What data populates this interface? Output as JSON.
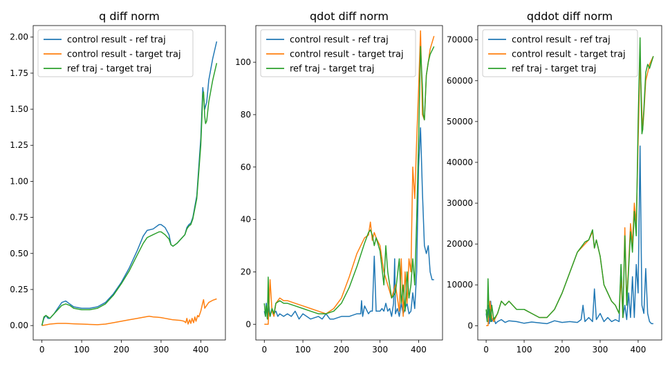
{
  "chart_data": [
    {
      "type": "line",
      "title": "q diff norm",
      "xlim": [
        -22,
        462
      ],
      "ylim": [
        -0.1,
        2.08
      ],
      "xticks": [
        0,
        100,
        200,
        300,
        400
      ],
      "xtick_labels": [
        "0",
        "100",
        "200",
        "300",
        "400"
      ],
      "yticks": [
        0,
        0.25,
        0.5,
        0.75,
        1.0,
        1.25,
        1.5,
        1.75,
        2.0
      ],
      "ytick_labels": [
        "0.00",
        "0.25",
        "0.50",
        "0.75",
        "1.00",
        "1.25",
        "1.50",
        "1.75",
        "2.00"
      ],
      "grid": false,
      "legend_position": "upper-left",
      "series": [
        {
          "name": "control result - ref traj",
          "color": "#1f77b4",
          "x": [
            0,
            5,
            10,
            15,
            20,
            30,
            40,
            50,
            60,
            70,
            80,
            100,
            120,
            140,
            160,
            180,
            200,
            220,
            240,
            255,
            265,
            280,
            295,
            300,
            310,
            320,
            325,
            330,
            340,
            350,
            360,
            365,
            370,
            375,
            380,
            390,
            400,
            405,
            407,
            410,
            415,
            420,
            430,
            440
          ],
          "y": [
            0.0,
            0.05,
            0.07,
            0.05,
            0.05,
            0.08,
            0.12,
            0.16,
            0.17,
            0.15,
            0.13,
            0.12,
            0.12,
            0.13,
            0.16,
            0.22,
            0.3,
            0.4,
            0.52,
            0.62,
            0.66,
            0.67,
            0.7,
            0.7,
            0.68,
            0.63,
            0.56,
            0.55,
            0.57,
            0.6,
            0.63,
            0.68,
            0.7,
            0.71,
            0.75,
            0.9,
            1.3,
            1.65,
            1.6,
            1.5,
            1.55,
            1.7,
            1.85,
            1.97
          ]
        },
        {
          "name": "control result - target traj",
          "color": "#ff7f0e",
          "x": [
            0,
            10,
            20,
            40,
            60,
            80,
            100,
            120,
            140,
            160,
            180,
            200,
            220,
            240,
            260,
            270,
            280,
            290,
            300,
            310,
            320,
            330,
            340,
            350,
            358,
            362,
            365,
            368,
            372,
            375,
            378,
            382,
            385,
            388,
            392,
            395,
            400,
            405,
            407,
            410,
            420,
            430,
            440
          ],
          "y": [
            0.0,
            0.005,
            0.01,
            0.015,
            0.015,
            0.012,
            0.01,
            0.008,
            0.006,
            0.01,
            0.02,
            0.03,
            0.04,
            0.05,
            0.06,
            0.065,
            0.06,
            0.058,
            0.055,
            0.05,
            0.045,
            0.04,
            0.038,
            0.035,
            0.03,
            0.02,
            0.05,
            0.01,
            0.04,
            0.015,
            0.05,
            0.02,
            0.06,
            0.03,
            0.07,
            0.06,
            0.1,
            0.16,
            0.18,
            0.12,
            0.16,
            0.175,
            0.185
          ]
        },
        {
          "name": "ref traj - target traj",
          "color": "#2ca02c",
          "x": [
            0,
            5,
            10,
            15,
            20,
            30,
            40,
            50,
            60,
            70,
            80,
            100,
            120,
            140,
            160,
            180,
            200,
            220,
            240,
            255,
            265,
            280,
            295,
            300,
            310,
            320,
            325,
            330,
            340,
            350,
            360,
            365,
            370,
            375,
            380,
            390,
            400,
            405,
            407,
            410,
            412,
            415,
            420,
            430,
            440
          ],
          "y": [
            0.0,
            0.06,
            0.07,
            0.06,
            0.05,
            0.08,
            0.11,
            0.14,
            0.15,
            0.14,
            0.12,
            0.11,
            0.11,
            0.12,
            0.15,
            0.21,
            0.29,
            0.38,
            0.49,
            0.57,
            0.61,
            0.63,
            0.65,
            0.65,
            0.63,
            0.6,
            0.56,
            0.55,
            0.57,
            0.6,
            0.63,
            0.67,
            0.69,
            0.7,
            0.74,
            0.88,
            1.25,
            1.6,
            1.62,
            1.45,
            1.4,
            1.42,
            1.55,
            1.7,
            1.82
          ]
        }
      ]
    },
    {
      "type": "line",
      "title": "qdot diff norm",
      "xlim": [
        -22,
        462
      ],
      "ylim": [
        -6,
        114
      ],
      "xticks": [
        0,
        100,
        200,
        300,
        400
      ],
      "xtick_labels": [
        "0",
        "100",
        "200",
        "300",
        "400"
      ],
      "yticks": [
        0,
        20,
        40,
        60,
        80,
        100
      ],
      "ytick_labels": [
        "0",
        "20",
        "40",
        "60",
        "80",
        "100"
      ],
      "grid": false,
      "legend_position": "upper-left",
      "series": [
        {
          "name": "control result - ref traj",
          "color": "#1f77b4",
          "x": [
            0,
            3,
            5,
            8,
            10,
            12,
            15,
            20,
            25,
            30,
            35,
            40,
            50,
            60,
            70,
            80,
            90,
            100,
            110,
            120,
            140,
            150,
            160,
            170,
            180,
            200,
            220,
            240,
            250,
            252,
            255,
            260,
            270,
            275,
            280,
            285,
            290,
            300,
            305,
            310,
            315,
            320,
            325,
            330,
            335,
            338,
            340,
            345,
            350,
            355,
            360,
            365,
            370,
            375,
            380,
            385,
            390,
            395,
            400,
            405,
            410,
            415,
            420,
            425,
            430,
            435,
            440
          ],
          "y": [
            5,
            3,
            8,
            2,
            5,
            7,
            3,
            6,
            4,
            5,
            3,
            4,
            3,
            4,
            3,
            5,
            2,
            4,
            3,
            2,
            3,
            2,
            4,
            2,
            2,
            3,
            3,
            4,
            4,
            9,
            3,
            7,
            4,
            5,
            5,
            26,
            5,
            5,
            6,
            5,
            8,
            5,
            6,
            3,
            8,
            25,
            4,
            6,
            3,
            8,
            4,
            6,
            8,
            4,
            5,
            12,
            6,
            20,
            60,
            75,
            50,
            30,
            27,
            30,
            20,
            17,
            17
          ]
        },
        {
          "name": "control result - target traj",
          "color": "#ff7f0e",
          "x": [
            0,
            5,
            10,
            15,
            20,
            25,
            30,
            40,
            50,
            60,
            80,
            100,
            120,
            140,
            160,
            180,
            200,
            220,
            240,
            260,
            270,
            275,
            280,
            285,
            290,
            300,
            310,
            320,
            330,
            340,
            350,
            355,
            360,
            365,
            370,
            375,
            380,
            385,
            390,
            395,
            400,
            405,
            410,
            415,
            420,
            425,
            430,
            440
          ],
          "y": [
            0,
            0,
            0,
            17,
            5,
            3,
            8,
            10,
            9,
            9,
            8,
            7,
            6,
            5,
            4,
            6,
            10,
            18,
            27,
            33,
            34,
            39,
            32,
            35,
            33,
            30,
            20,
            15,
            10,
            15,
            5,
            25,
            3,
            20,
            8,
            25,
            20,
            60,
            48,
            70,
            90,
            112,
            80,
            78,
            95,
            100,
            105,
            110
          ]
        },
        {
          "name": "ref traj - target traj",
          "color": "#2ca02c",
          "x": [
            0,
            3,
            5,
            8,
            10,
            12,
            15,
            20,
            25,
            30,
            40,
            50,
            60,
            80,
            100,
            120,
            140,
            160,
            180,
            200,
            220,
            240,
            260,
            270,
            275,
            280,
            285,
            290,
            300,
            310,
            315,
            320,
            325,
            330,
            340,
            350,
            355,
            360,
            365,
            370,
            375,
            380,
            385,
            390,
            395,
            400,
            405,
            410,
            412,
            415,
            420,
            425,
            430,
            440
          ],
          "y": [
            8,
            3,
            7,
            2,
            18,
            5,
            3,
            6,
            4,
            8,
            9,
            8,
            8,
            7,
            6,
            5,
            4,
            4,
            5,
            8,
            14,
            22,
            31,
            35,
            36,
            34,
            30,
            33,
            28,
            15,
            30,
            20,
            15,
            10,
            12,
            25,
            8,
            15,
            5,
            20,
            10,
            15,
            25,
            15,
            40,
            70,
            106,
            90,
            80,
            78,
            95,
            100,
            103,
            106
          ]
        }
      ]
    },
    {
      "type": "line",
      "title": "qddot diff norm",
      "xlim": [
        -22,
        462
      ],
      "ylim": [
        -3500,
        73500
      ],
      "xticks": [
        0,
        100,
        200,
        300,
        400
      ],
      "xtick_labels": [
        "0",
        "100",
        "200",
        "300",
        "400"
      ],
      "yticks": [
        0,
        10000,
        20000,
        30000,
        40000,
        50000,
        60000,
        70000
      ],
      "ytick_labels": [
        "0",
        "10000",
        "20000",
        "30000",
        "40000",
        "50000",
        "60000",
        "70000"
      ],
      "grid": false,
      "legend_position": "upper-left",
      "series": [
        {
          "name": "control result - ref traj",
          "color": "#1f77b4",
          "x": [
            0,
            3,
            5,
            8,
            10,
            12,
            15,
            20,
            25,
            30,
            40,
            50,
            60,
            80,
            100,
            120,
            140,
            160,
            180,
            200,
            220,
            240,
            250,
            255,
            260,
            270,
            280,
            285,
            290,
            300,
            310,
            320,
            330,
            340,
            350,
            355,
            360,
            365,
            370,
            375,
            380,
            385,
            390,
            395,
            400,
            405,
            408,
            410,
            415,
            420,
            425,
            430,
            435,
            440
          ],
          "y": [
            3000,
            1000,
            5000,
            500,
            2000,
            6000,
            1000,
            2000,
            500,
            1000,
            1500,
            800,
            1200,
            1000,
            600,
            900,
            700,
            500,
            1200,
            800,
            1000,
            800,
            1500,
            5000,
            1000,
            2000,
            1000,
            9000,
            1500,
            3000,
            1000,
            2000,
            1000,
            1500,
            1000,
            15000,
            2000,
            5000,
            1500,
            8000,
            2000,
            12000,
            2000,
            15000,
            8000,
            44000,
            20000,
            5000,
            3000,
            14000,
            3000,
            1000,
            500,
            500
          ]
        },
        {
          "name": "control result - target traj",
          "color": "#ff7f0e",
          "x": [
            0,
            5,
            10,
            15,
            20,
            30,
            40,
            50,
            60,
            80,
            100,
            120,
            140,
            160,
            180,
            200,
            220,
            240,
            260,
            270,
            280,
            285,
            290,
            300,
            310,
            320,
            330,
            340,
            350,
            355,
            360,
            365,
            370,
            375,
            380,
            385,
            390,
            395,
            400,
            405,
            410,
            412,
            415,
            420,
            425,
            430,
            440
          ],
          "y": [
            0,
            0,
            6000,
            2000,
            1000,
            3000,
            6000,
            5000,
            6000,
            4000,
            4000,
            3000,
            2000,
            2000,
            4000,
            8000,
            13000,
            18000,
            20000,
            21000,
            23000,
            19000,
            21000,
            17000,
            10000,
            8000,
            6000,
            5000,
            3000,
            12000,
            2000,
            24000,
            6000,
            15000,
            25000,
            20000,
            30000,
            25000,
            45000,
            65000,
            52000,
            48000,
            52000,
            60000,
            62000,
            64000,
            66000
          ]
        },
        {
          "name": "ref traj - target traj",
          "color": "#2ca02c",
          "x": [
            0,
            3,
            5,
            8,
            10,
            12,
            15,
            20,
            30,
            40,
            50,
            60,
            80,
            100,
            120,
            140,
            160,
            180,
            200,
            220,
            240,
            260,
            270,
            280,
            285,
            290,
            300,
            310,
            320,
            330,
            340,
            350,
            355,
            360,
            365,
            370,
            375,
            380,
            385,
            390,
            395,
            400,
            405,
            408,
            410,
            412,
            415,
            420,
            425,
            430,
            440
          ],
          "y": [
            4000,
            1000,
            11500,
            2000,
            4000,
            1000,
            5000,
            1500,
            3000,
            6000,
            5000,
            6000,
            4000,
            4000,
            3000,
            2000,
            2000,
            4000,
            8000,
            13000,
            18000,
            20500,
            21000,
            23500,
            19000,
            21000,
            17000,
            10000,
            8000,
            6000,
            5000,
            3000,
            15000,
            2000,
            22000,
            5000,
            14000,
            23000,
            18000,
            28000,
            22000,
            50000,
            70500,
            55000,
            47000,
            48000,
            53000,
            62000,
            64000,
            63000,
            66000
          ]
        }
      ]
    }
  ]
}
